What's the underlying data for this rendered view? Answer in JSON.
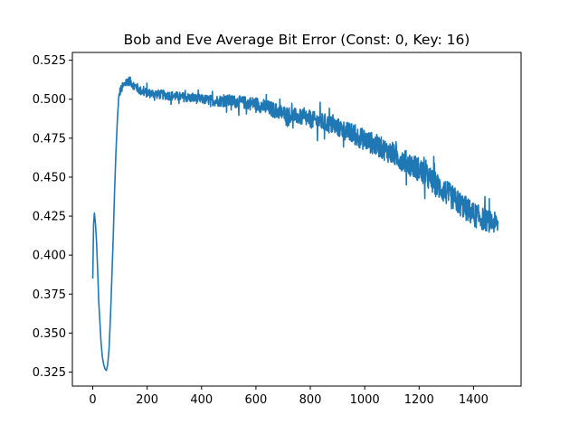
{
  "chart_data": {
    "type": "line",
    "title": "Bob and Eve Average Bit Error (Const: 0, Key: 16)",
    "xlabel": "",
    "ylabel": "",
    "xlim": [
      -75,
      1575
    ],
    "ylim": [
      0.316,
      0.53
    ],
    "xticks": [
      0,
      200,
      400,
      600,
      800,
      1000,
      1200,
      1400
    ],
    "xtick_labels": [
      "0",
      "200",
      "400",
      "600",
      "800",
      "1000",
      "1200",
      "1400"
    ],
    "yticks": [
      0.325,
      0.35,
      0.375,
      0.4,
      0.425,
      0.45,
      0.475,
      0.5,
      0.525
    ],
    "ytick_labels": [
      "0.325",
      "0.350",
      "0.375",
      "0.400",
      "0.425",
      "0.450",
      "0.475",
      "0.500",
      "0.525"
    ],
    "grid": false,
    "series": [
      {
        "color": "#1f77b4",
        "x": [
          0,
          3,
          6,
          10,
          14,
          18,
          22,
          26,
          30,
          35,
          40,
          45,
          50,
          55,
          60,
          65,
          70,
          75,
          80,
          85,
          90,
          95,
          100,
          110,
          120,
          130,
          140,
          150,
          160,
          170,
          180,
          200,
          250,
          300,
          350,
          400,
          450,
          500,
          550,
          600,
          650,
          700,
          750,
          800,
          850,
          900,
          950,
          1000,
          1050,
          1100,
          1150,
          1200,
          1250,
          1300,
          1350,
          1400,
          1450,
          1490
        ],
        "values": [
          0.385,
          0.42,
          0.427,
          0.42,
          0.408,
          0.39,
          0.37,
          0.358,
          0.345,
          0.335,
          0.33,
          0.327,
          0.326,
          0.33,
          0.34,
          0.36,
          0.385,
          0.41,
          0.44,
          0.465,
          0.485,
          0.5,
          0.505,
          0.508,
          0.51,
          0.512,
          0.511,
          0.509,
          0.508,
          0.506,
          0.505,
          0.504,
          0.503,
          0.502,
          0.501,
          0.5,
          0.499,
          0.499,
          0.498,
          0.497,
          0.494,
          0.491,
          0.489,
          0.487,
          0.485,
          0.482,
          0.478,
          0.474,
          0.47,
          0.465,
          0.46,
          0.455,
          0.447,
          0.44,
          0.433,
          0.426,
          0.422,
          0.42
        ],
        "noise_amplitude": [
          0,
          0,
          0,
          0,
          0,
          0,
          0,
          0,
          0,
          0,
          0,
          0,
          0,
          0,
          0,
          0,
          0,
          0,
          0,
          0,
          0,
          0.002,
          0.003,
          0.003,
          0.003,
          0.003,
          0.003,
          0.003,
          0.003,
          0.003,
          0.003,
          0.003,
          0.003,
          0.003,
          0.003,
          0.003,
          0.0035,
          0.004,
          0.004,
          0.0045,
          0.005,
          0.005,
          0.005,
          0.0055,
          0.006,
          0.006,
          0.0065,
          0.007,
          0.007,
          0.007,
          0.0075,
          0.008,
          0.008,
          0.008,
          0.008,
          0.008,
          0.007,
          0.007
        ]
      }
    ]
  }
}
